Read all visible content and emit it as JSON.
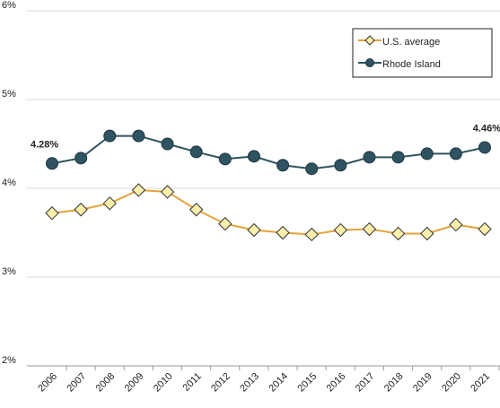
{
  "chart_data": {
    "type": "line",
    "categories": [
      "2006",
      "2007",
      "2008",
      "2009",
      "2010",
      "2011",
      "2012",
      "2013",
      "2014",
      "2015",
      "2016",
      "2017",
      "2018",
      "2019",
      "2020",
      "2021"
    ],
    "series": [
      {
        "name": "U.S. average",
        "color": "#e3a33a",
        "marker": "diamond",
        "marker_color": "#fbeeaa",
        "values": [
          3.72,
          3.76,
          3.83,
          3.98,
          3.96,
          3.76,
          3.6,
          3.53,
          3.5,
          3.48,
          3.53,
          3.54,
          3.49,
          3.49,
          3.59,
          3.54
        ]
      },
      {
        "name": "Rhode Island",
        "color": "#2f5361",
        "marker": "circle",
        "marker_color": "#2f5361",
        "values": [
          4.28,
          4.34,
          4.59,
          4.59,
          4.5,
          4.41,
          4.33,
          4.36,
          4.26,
          4.22,
          4.26,
          4.35,
          4.35,
          4.39,
          4.39,
          4.46
        ],
        "value_labels": [
          "4.28%",
          null,
          null,
          null,
          null,
          null,
          null,
          null,
          null,
          null,
          null,
          null,
          null,
          null,
          null,
          "4.46%"
        ]
      }
    ],
    "ylim": [
      2,
      6
    ],
    "yticks": [
      {
        "value": 2,
        "label": "2%"
      },
      {
        "value": 3,
        "label": "3%"
      },
      {
        "value": 4,
        "label": "4%"
      },
      {
        "value": 5,
        "label": "5%"
      },
      {
        "value": 6,
        "label": "6%"
      }
    ],
    "grid": true,
    "legend": "top-right"
  }
}
